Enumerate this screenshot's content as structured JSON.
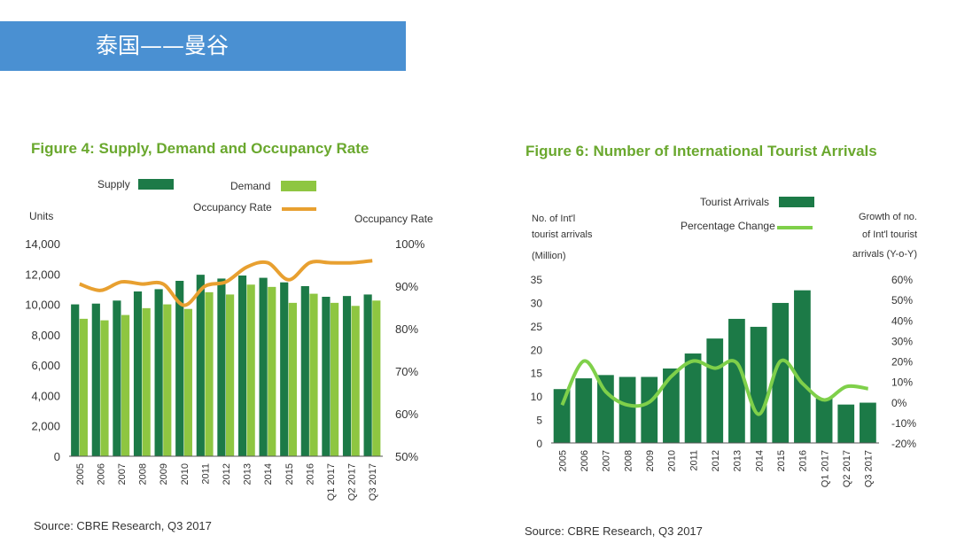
{
  "header": {
    "title": "泰国——曼谷",
    "bg_color": "#4a90d2"
  },
  "chart_data": [
    {
      "type": "bar",
      "title": "Figure 4: Supply, Demand and Occupancy Rate",
      "ylabel": "Units",
      "y2label": "Occupancy Rate",
      "ylim": [
        0,
        14000
      ],
      "y2lim": [
        50,
        100
      ],
      "yticks": [
        "0",
        "2,000",
        "4,000",
        "6,000",
        "8,000",
        "10,000",
        "12,000",
        "14,000"
      ],
      "y2ticks": [
        "50%",
        "60%",
        "70%",
        "80%",
        "90%",
        "100%"
      ],
      "categories": [
        "2005",
        "2006",
        "2007",
        "2008",
        "2009",
        "2010",
        "2011",
        "2012",
        "2013",
        "2014",
        "2015",
        "2016",
        "Q1 2017",
        "Q2 2017",
        "Q3 2017"
      ],
      "series": [
        {
          "name": "Supply",
          "kind": "bar",
          "color": "#1c7a47",
          "values": [
            10000,
            10050,
            10250,
            10850,
            11000,
            11550,
            11950,
            11700,
            11900,
            11750,
            11450,
            11200,
            10500,
            10550,
            10650
          ]
        },
        {
          "name": "Demand",
          "kind": "bar",
          "color": "#8ec641",
          "values": [
            9050,
            8950,
            9300,
            9750,
            10000,
            9700,
            10800,
            10650,
            11300,
            11150,
            10100,
            10700,
            10100,
            9900,
            10250
          ]
        },
        {
          "name": "Occupancy Rate",
          "kind": "line",
          "axis": "right",
          "color": "#e8a030",
          "values": [
            90.5,
            89,
            91,
            90.5,
            90.5,
            85.5,
            90,
            91,
            94.5,
            95.5,
            91.5,
            95.5,
            95.5,
            95.5,
            96
          ]
        }
      ],
      "legend": "top-center",
      "source": "Source: CBRE Research, Q3 2017"
    },
    {
      "type": "bar",
      "title": "Figure 6: Number of International Tourist Arrivals",
      "ylabel": "No. of Int'l tourist arrivals (Million)",
      "ylabel_lines": [
        "No. of Int'l",
        "tourist arrivals",
        "(Million)"
      ],
      "y2label": "Growth of no. of Int'l tourist arrivals (Y-o-Y)",
      "y2label_lines": [
        "Growth of no.",
        "of Int'l tourist",
        "arrivals (Y-o-Y)"
      ],
      "ylim": [
        0,
        35
      ],
      "y2lim": [
        -20,
        60
      ],
      "yticks": [
        "0",
        "5",
        "10",
        "15",
        "20",
        "25",
        "30",
        "35"
      ],
      "y2ticks": [
        "-20%",
        "-10%",
        "0%",
        "10%",
        "20%",
        "30%",
        "40%",
        "50%",
        "60%"
      ],
      "categories": [
        "2005",
        "2006",
        "2007",
        "2008",
        "2009",
        "2010",
        "2011",
        "2012",
        "2013",
        "2014",
        "2015",
        "2016",
        "Q1 2017",
        "Q2 2017",
        "Q3 2017"
      ],
      "series": [
        {
          "name": "Tourist Arrivals",
          "kind": "bar",
          "color": "#1c7a47",
          "values": [
            11.5,
            13.8,
            14.5,
            14.1,
            14.1,
            15.9,
            19.1,
            22.3,
            26.5,
            24.8,
            29.9,
            32.6,
            9.5,
            8.2,
            8.6
          ]
        },
        {
          "name": "Percentage Change",
          "kind": "line",
          "axis": "right",
          "color": "#7fd04a",
          "values": [
            -1.5,
            20,
            5,
            -1.5,
            0,
            12.5,
            20,
            16.5,
            19,
            -6,
            20,
            9,
            1,
            7.5,
            6.5
          ]
        }
      ],
      "legend": "top-center",
      "source": "Source: CBRE Research, Q3 2017"
    }
  ]
}
